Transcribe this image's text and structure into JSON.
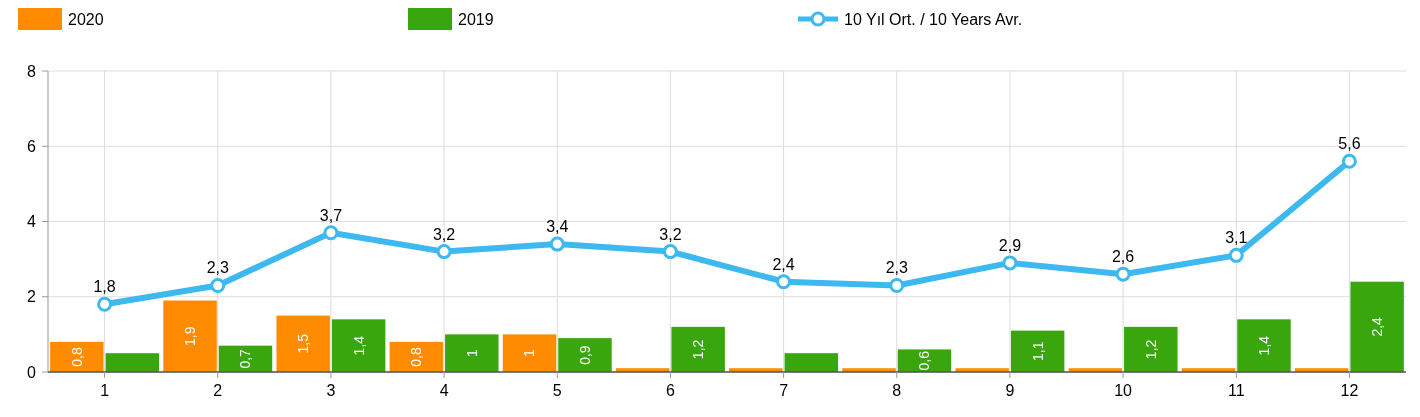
{
  "chart_data": {
    "type": "bar",
    "categories": [
      "1",
      "2",
      "3",
      "4",
      "5",
      "6",
      "7",
      "8",
      "9",
      "10",
      "11",
      "12"
    ],
    "series": [
      {
        "name": "2020",
        "color": "#ff8c00",
        "values": [
          0.8,
          1.9,
          1.5,
          0.8,
          1,
          0.1,
          0.1,
          0.1,
          0.1,
          0.1,
          0.1,
          0.1
        ],
        "value_labels": [
          "0,8",
          "1,9",
          "1,5",
          "0,8",
          "1",
          null,
          null,
          null,
          null,
          null,
          null,
          null
        ]
      },
      {
        "name": "2019",
        "color": "#3aa60e",
        "values": [
          0.5,
          0.7,
          1.4,
          1,
          0.9,
          1.2,
          0.5,
          0.6,
          1.1,
          1.2,
          1.4,
          2.4
        ],
        "value_labels": [
          null,
          "0,7",
          "1,4",
          "1",
          "0,9",
          "1,2",
          null,
          "0,6",
          "1,1",
          "1,2",
          "1,4",
          "2,4"
        ]
      },
      {
        "name": "10 Yıl Ort. / 10 Years Avr.",
        "type": "line",
        "color": "#3db9ef",
        "values": [
          1.8,
          2.3,
          3.7,
          3.2,
          3.4,
          3.2,
          2.4,
          2.3,
          2.9,
          2.6,
          3.1,
          5.6
        ],
        "value_labels": [
          "1,8",
          "2,3",
          "3,7",
          "3,2",
          "3,4",
          "3,2",
          "2,4",
          "2,3",
          "2,9",
          "2,6",
          "3,1",
          "5,6"
        ]
      }
    ],
    "ylim": [
      0,
      8
    ],
    "yticks": [
      0,
      2,
      4,
      6,
      8
    ],
    "grid": true,
    "legend": "top",
    "marker": "circle"
  }
}
